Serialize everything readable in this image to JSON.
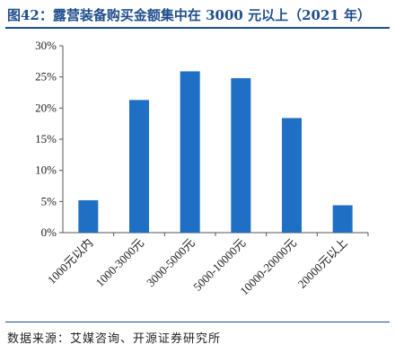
{
  "title": "图42：露营装备购买金额集中在 3000 元以上（2021 年）",
  "source": "数据来源：艾媒咨询、开源证券研究所",
  "chart_data": {
    "type": "bar",
    "categories": [
      "1000元以内",
      "1000-3000元",
      "3000-5000元",
      "5000-10000元",
      "10000-20000元",
      "20000元以上"
    ],
    "values": [
      5.2,
      21.3,
      25.9,
      24.8,
      18.4,
      4.4
    ],
    "ylim": [
      0,
      30
    ],
    "yticks": [
      0,
      5,
      10,
      15,
      20,
      25,
      30
    ],
    "ytick_labels": [
      "0%",
      "5%",
      "10%",
      "15%",
      "20%",
      "25%",
      "30%"
    ],
    "bar_color": "#1f6fc5",
    "grid": false,
    "title": "",
    "xlabel": "",
    "ylabel": ""
  }
}
